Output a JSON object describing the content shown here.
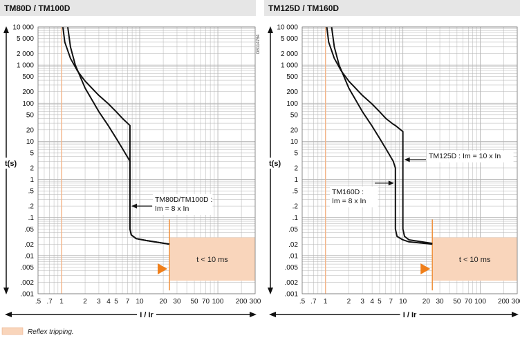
{
  "page": {
    "legend_text": "Reflex tripping.",
    "legend_color": "#f9d5bb",
    "side_code": "DB114784"
  },
  "colors": {
    "header_bg": "#e6e6e6",
    "grid": "#b3b3b3",
    "curve": "#111111",
    "zone_fill": "#f9d5bb",
    "zone_edge": "#f0913c",
    "marker": "#f07f1a",
    "ref_line": "#f3b58a"
  },
  "chart_data": [
    {
      "type": "line",
      "title": "TM80D / TM100D",
      "xlabel": "I / Ir",
      "ylabel": "t(s)",
      "xscale": "log",
      "yscale": "log",
      "xlim": [
        0.5,
        300
      ],
      "ylim": [
        0.001,
        10000
      ],
      "grid": true,
      "x_tick_labels": [
        {
          "v": 0.5,
          "t": ".5"
        },
        {
          "v": 0.7,
          "t": ".7"
        },
        {
          "v": 1,
          "t": "1"
        },
        {
          "v": 2,
          "t": "2"
        },
        {
          "v": 3,
          "t": "3"
        },
        {
          "v": 4,
          "t": "4"
        },
        {
          "v": 5,
          "t": "5"
        },
        {
          "v": 7,
          "t": "7"
        },
        {
          "v": 10,
          "t": "10"
        },
        {
          "v": 20,
          "t": "20"
        },
        {
          "v": 30,
          "t": "30"
        },
        {
          "v": 50,
          "t": "50"
        },
        {
          "v": 70,
          "t": "70"
        },
        {
          "v": 100,
          "t": "100"
        },
        {
          "v": 200,
          "t": "200"
        },
        {
          "v": 300,
          "t": "300"
        }
      ],
      "y_tick_labels": [
        {
          "v": 10000,
          "t": "10 000"
        },
        {
          "v": 5000,
          "t": "5 000"
        },
        {
          "v": 2000,
          "t": "2 000"
        },
        {
          "v": 1000,
          "t": "1 000"
        },
        {
          "v": 500,
          "t": "500"
        },
        {
          "v": 200,
          "t": "200"
        },
        {
          "v": 100,
          "t": "100"
        },
        {
          "v": 50,
          "t": "50"
        },
        {
          "v": 20,
          "t": "20"
        },
        {
          "v": 10,
          "t": "10"
        },
        {
          "v": 5,
          "t": "5"
        },
        {
          "v": 2,
          "t": "2"
        },
        {
          "v": 1,
          "t": "1"
        },
        {
          "v": 0.5,
          "t": ".5"
        },
        {
          "v": 0.2,
          "t": ".2"
        },
        {
          "v": 0.1,
          "t": ".1"
        },
        {
          "v": 0.05,
          "t": ".05"
        },
        {
          "v": 0.02,
          "t": ".02"
        },
        {
          "v": 0.01,
          "t": ".01"
        },
        {
          "v": 0.005,
          "t": ".005"
        },
        {
          "v": 0.002,
          "t": ".002"
        },
        {
          "v": 0.001,
          "t": ".001"
        }
      ],
      "series": [
        {
          "points": [
            [
              1.04,
              10000
            ],
            [
              1.1,
              4000
            ],
            [
              1.3,
              1500
            ],
            [
              1.6,
              700
            ],
            [
              2,
              380
            ],
            [
              3,
              160
            ],
            [
              4,
              95
            ],
            [
              5,
              60
            ],
            [
              6,
              40
            ],
            [
              7.5,
              26
            ],
            [
              7.5,
              0.05
            ],
            [
              7.8,
              0.035
            ],
            [
              9,
              0.028
            ],
            [
              12,
              0.025
            ],
            [
              24,
              0.02
            ]
          ]
        },
        {
          "points": [
            [
              1.2,
              10000
            ],
            [
              1.3,
              3000
            ],
            [
              1.5,
              1000
            ],
            [
              2,
              250
            ],
            [
              3,
              60
            ],
            [
              4,
              25
            ],
            [
              5,
              12
            ],
            [
              6,
              6.5
            ],
            [
              7.5,
              3
            ],
            [
              7.5,
              0.05
            ],
            [
              7.8,
              0.035
            ],
            [
              9,
              0.028
            ],
            [
              12,
              0.025
            ],
            [
              24,
              0.02
            ]
          ]
        }
      ],
      "ref_line_x": 1,
      "instantaneous_zone": {
        "x_from": 24,
        "t_from": 0.0022,
        "t_to": 0.03,
        "label": "t < 10 ms"
      },
      "annotations": [
        {
          "lines": [
            "TM80D/TM100D :",
            "Im = 8 x In"
          ],
          "x": 7.5,
          "y": 0.2
        }
      ]
    },
    {
      "type": "line",
      "title": "TM125D / TM160D",
      "xlabel": "I / Ir",
      "ylabel": "t(s)",
      "xscale": "log",
      "yscale": "log",
      "xlim": [
        0.5,
        300
      ],
      "ylim": [
        0.001,
        10000
      ],
      "grid": true,
      "x_tick_labels": [
        {
          "v": 0.5,
          "t": ".5"
        },
        {
          "v": 0.7,
          "t": ".7"
        },
        {
          "v": 1,
          "t": "1"
        },
        {
          "v": 2,
          "t": "2"
        },
        {
          "v": 3,
          "t": "3"
        },
        {
          "v": 4,
          "t": "4"
        },
        {
          "v": 5,
          "t": "5"
        },
        {
          "v": 7,
          "t": "7"
        },
        {
          "v": 10,
          "t": "10"
        },
        {
          "v": 20,
          "t": "20"
        },
        {
          "v": 30,
          "t": "30"
        },
        {
          "v": 50,
          "t": "50"
        },
        {
          "v": 70,
          "t": "70"
        },
        {
          "v": 100,
          "t": "100"
        },
        {
          "v": 200,
          "t": "200"
        },
        {
          "v": 300,
          "t": "300"
        }
      ],
      "y_tick_labels": [
        {
          "v": 10000,
          "t": "10 000"
        },
        {
          "v": 5000,
          "t": "5 000"
        },
        {
          "v": 2000,
          "t": "2 000"
        },
        {
          "v": 1000,
          "t": "1 000"
        },
        {
          "v": 500,
          "t": "500"
        },
        {
          "v": 200,
          "t": "200"
        },
        {
          "v": 100,
          "t": "100"
        },
        {
          "v": 50,
          "t": "50"
        },
        {
          "v": 20,
          "t": "20"
        },
        {
          "v": 10,
          "t": "10"
        },
        {
          "v": 5,
          "t": "5"
        },
        {
          "v": 2,
          "t": "2"
        },
        {
          "v": 1,
          "t": "1"
        },
        {
          "v": 0.5,
          "t": ".5"
        },
        {
          "v": 0.2,
          "t": ".2"
        },
        {
          "v": 0.1,
          "t": ".1"
        },
        {
          "v": 0.05,
          "t": ".05"
        },
        {
          "v": 0.02,
          "t": ".02"
        },
        {
          "v": 0.01,
          "t": ".01"
        },
        {
          "v": 0.005,
          "t": ".005"
        },
        {
          "v": 0.002,
          "t": ".002"
        },
        {
          "v": 0.001,
          "t": ".001"
        }
      ],
      "series": [
        {
          "points": [
            [
              1.04,
              10000
            ],
            [
              1.1,
              4000
            ],
            [
              1.3,
              1500
            ],
            [
              1.6,
              700
            ],
            [
              2,
              380
            ],
            [
              3,
              160
            ],
            [
              4,
              95
            ],
            [
              5,
              60
            ],
            [
              6,
              40
            ],
            [
              7.5,
              28
            ],
            [
              8,
              26
            ],
            [
              10,
              18
            ],
            [
              10,
              0.05
            ],
            [
              10.5,
              0.032
            ],
            [
              12,
              0.026
            ],
            [
              24,
              0.021
            ]
          ]
        },
        {
          "points": [
            [
              1.2,
              10000
            ],
            [
              1.3,
              3000
            ],
            [
              1.5,
              1000
            ],
            [
              2,
              250
            ],
            [
              3,
              60
            ],
            [
              4,
              25
            ],
            [
              5,
              12
            ],
            [
              6,
              6.5
            ],
            [
              7.5,
              3
            ],
            [
              8,
              2
            ],
            [
              8,
              0.05
            ],
            [
              8.4,
              0.032
            ],
            [
              10,
              0.026
            ],
            [
              12,
              0.023
            ],
            [
              24,
              0.02
            ]
          ]
        }
      ],
      "ref_line_x": 1,
      "instantaneous_zone": {
        "x_from": 24,
        "t_from": 0.0022,
        "t_to": 0.03,
        "label": "t < 10 ms"
      },
      "annotations": [
        {
          "lines": [
            "TM125D : Im = 10 x In"
          ],
          "x": 10,
          "y": 3.3
        },
        {
          "lines": [
            "TM160D :",
            "Im = 8 x In"
          ],
          "x": 8,
          "y": 0.8
        }
      ]
    }
  ]
}
